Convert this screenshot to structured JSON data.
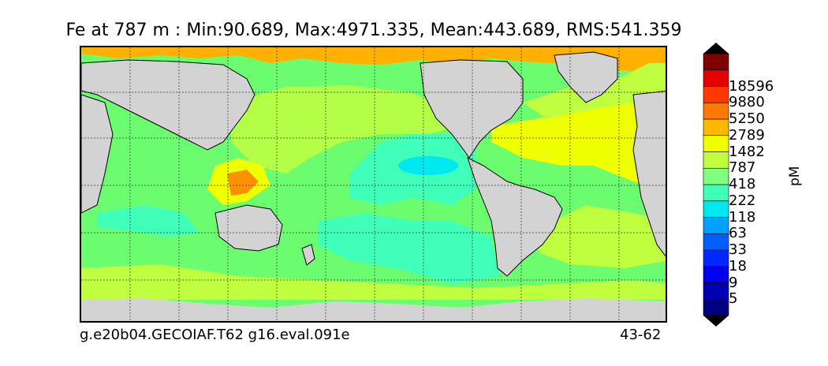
{
  "title": "Fe at 787 m : Min:90.689, Max:4971.335, Mean:443.689, RMS:541.359",
  "footer": {
    "left": "g.e20b04.GECOIAF.T62 g16.eval.091e",
    "right": "43-62"
  },
  "colorbar": {
    "unit": "pM",
    "levels": [
      "5",
      "9",
      "18",
      "33",
      "63",
      "118",
      "222",
      "418",
      "787",
      "1482",
      "2789",
      "5250",
      "9880",
      "18596"
    ],
    "colors": [
      "#000080",
      "#0000b3",
      "#0000ee",
      "#0028ff",
      "#0060ff",
      "#00a0ff",
      "#00e8f0",
      "#40ffb8",
      "#80ff80",
      "#c0ff40",
      "#f0ff00",
      "#ffb800",
      "#ff7800",
      "#ff3800",
      "#e40000",
      "#800000"
    ]
  },
  "map_colors": {
    "land": "#d3d3d3",
    "ice": "#ffffff",
    "background_field": "#6cfc70"
  }
}
